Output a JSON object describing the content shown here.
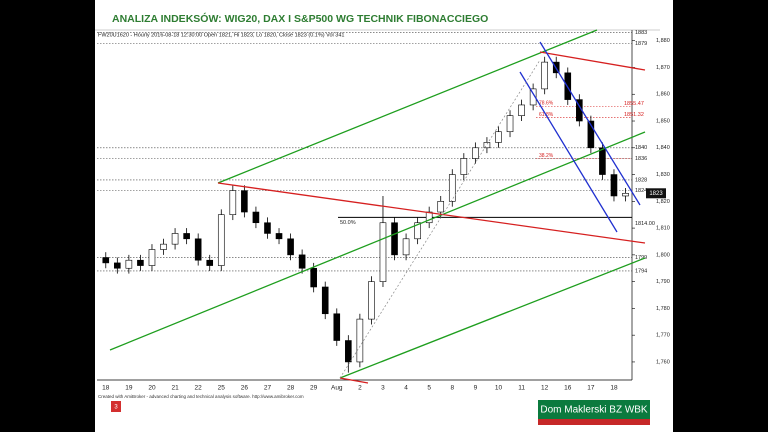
{
  "slide": {
    "title": "ANALIZA INDEKSÓW: WIG20, DAX I S&P500 WG TECHNIK FIBONACCIEGO",
    "page_number": 3,
    "brand": "Dom Maklerski BZ WBK"
  },
  "chart_data": {
    "type": "candlestick",
    "subtitle": "FW20U1620 - Hourly 2016-08-18 12:30:00 Open 1821, Hi 1823, Lo 1820, Close 1823 (0.1%) Vol 341",
    "note": "Created with AmiBroker - advanced charting and technical analysis software. http://www.amibroker.com",
    "categories": [
      "18",
      null,
      "19",
      null,
      "20",
      null,
      "21",
      null,
      "22",
      null,
      "25",
      null,
      "26",
      null,
      "27",
      null,
      "28",
      null,
      "29",
      null,
      "Aug",
      null,
      "2",
      null,
      "3",
      null,
      "4",
      null,
      "5",
      null,
      "8",
      null,
      "9",
      null,
      "10",
      null,
      "11",
      null,
      "12",
      null,
      "16",
      null,
      "17",
      null,
      "18",
      null
    ],
    "open": [
      1799,
      1797,
      1795,
      1798,
      1796,
      1802,
      1804,
      1808,
      1806,
      1798,
      1796,
      1815,
      1824,
      1816,
      1812,
      1808,
      1806,
      1800,
      1795,
      1788,
      1778,
      1768,
      1760,
      1776,
      1790,
      1812,
      1800,
      1806,
      1812,
      1816,
      1820,
      1830,
      1836,
      1840,
      1842,
      1846,
      1852,
      1856,
      1862,
      1872,
      1868,
      1858,
      1850,
      1840,
      1830,
      1822
    ],
    "high": [
      1801,
      1799,
      1800,
      1800,
      1804,
      1806,
      1810,
      1810,
      1808,
      1800,
      1817,
      1826,
      1826,
      1818,
      1814,
      1810,
      1808,
      1802,
      1797,
      1790,
      1780,
      1770,
      1778,
      1792,
      1822,
      1814,
      1808,
      1814,
      1818,
      1822,
      1832,
      1838,
      1842,
      1844,
      1848,
      1854,
      1858,
      1864,
      1874,
      1874,
      1870,
      1860,
      1852,
      1842,
      1832,
      1825
    ],
    "low": [
      1795,
      1793,
      1793,
      1794,
      1794,
      1800,
      1802,
      1804,
      1796,
      1794,
      1794,
      1813,
      1814,
      1810,
      1806,
      1804,
      1798,
      1793,
      1786,
      1776,
      1766,
      1756,
      1758,
      1774,
      1788,
      1798,
      1798,
      1804,
      1810,
      1814,
      1818,
      1828,
      1834,
      1838,
      1840,
      1844,
      1850,
      1854,
      1860,
      1866,
      1856,
      1848,
      1838,
      1828,
      1820,
      1820
    ],
    "close": [
      1797,
      1795,
      1798,
      1796,
      1802,
      1804,
      1808,
      1806,
      1798,
      1796,
      1815,
      1824,
      1816,
      1812,
      1808,
      1806,
      1800,
      1795,
      1788,
      1778,
      1768,
      1760,
      1776,
      1790,
      1812,
      1800,
      1806,
      1812,
      1816,
      1820,
      1830,
      1836,
      1840,
      1842,
      1846,
      1852,
      1856,
      1862,
      1872,
      1868,
      1858,
      1850,
      1840,
      1830,
      1822,
      1823
    ],
    "ylim": [
      1754,
      1884
    ],
    "yticks": [
      {
        "value": 1760,
        "label": "1,760"
      },
      {
        "value": 1770,
        "label": "1,770"
      },
      {
        "value": 1780,
        "label": "1,780"
      },
      {
        "value": 1790,
        "label": "1,790"
      },
      {
        "value": 1800,
        "label": "1,800"
      },
      {
        "value": 1810,
        "label": "1,810"
      },
      {
        "value": 1820,
        "label": "1,820"
      },
      {
        "value": 1830,
        "label": "1,830"
      },
      {
        "value": 1840,
        "label": "1,840"
      },
      {
        "value": 1850,
        "label": "1,850"
      },
      {
        "value": 1860,
        "label": "1,860"
      },
      {
        "value": 1870,
        "label": "1,870"
      },
      {
        "value": 1880,
        "label": "1,880"
      }
    ],
    "levels": [
      1883,
      1879,
      1840,
      1836,
      1828,
      1824,
      1799,
      1794
    ],
    "fib_levels": [
      {
        "value": 1855.47,
        "label": "78.6%"
      },
      {
        "value": 1851.32,
        "label": "61.8%"
      },
      {
        "value": 1836,
        "label": "38.2%"
      }
    ],
    "support": {
      "value": 1814,
      "label": "1814.00",
      "fib_label": "50.0%"
    }
  }
}
